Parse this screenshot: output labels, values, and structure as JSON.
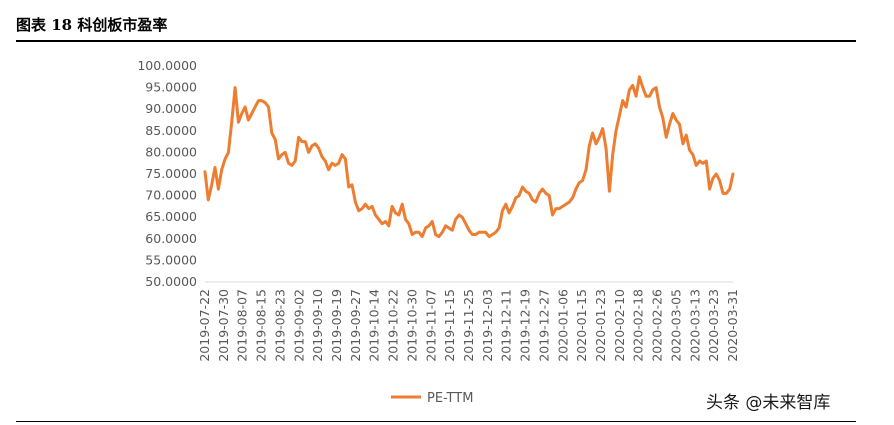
{
  "header": {
    "title": "图表 18 科创板市盈率"
  },
  "watermark": "头条 @未来智库",
  "chart_data": {
    "type": "line",
    "title": "",
    "xlabel": "",
    "ylabel": "",
    "ylim": [
      50,
      100
    ],
    "yticks": [
      "100.0000",
      "95.0000",
      "90.0000",
      "85.0000",
      "80.0000",
      "75.0000",
      "70.0000",
      "65.0000",
      "60.0000",
      "55.0000",
      "50.0000"
    ],
    "xticks": [
      "2019-07-22",
      "2019-07-30",
      "2019-08-07",
      "2019-08-15",
      "2019-08-23",
      "2019-09-02",
      "2019-09-10",
      "2019-09-19",
      "2019-09-27",
      "2019-10-14",
      "2019-10-22",
      "2019-10-30",
      "2019-11-07",
      "2019-11-15",
      "2019-11-25",
      "2019-12-03",
      "2019-12-11",
      "2019-12-19",
      "2019-12-27",
      "2020-01-06",
      "2020-01-15",
      "2020-01-23",
      "2020-02-10",
      "2020-02-18",
      "2020-02-26",
      "2020-03-05",
      "2020-03-13",
      "2020-03-23",
      "2020-03-31"
    ],
    "grid": false,
    "legend": "bottom-center",
    "series": [
      {
        "name": "PE-TTM",
        "color": "#ED7D31",
        "values": [
          75.5,
          69.0,
          72.5,
          76.5,
          71.5,
          76.0,
          78.5,
          80.0,
          87.0,
          95.0,
          87.0,
          89.0,
          90.5,
          87.5,
          89.0,
          90.5,
          92.0,
          92.0,
          91.5,
          90.5,
          84.5,
          83.0,
          78.5,
          79.5,
          80.0,
          77.5,
          77.0,
          78.0,
          83.5,
          82.5,
          82.5,
          80.0,
          81.5,
          82.0,
          81.0,
          79.0,
          78.0,
          76.0,
          77.5,
          77.0,
          77.5,
          79.5,
          78.5,
          72.0,
          72.5,
          68.5,
          66.5,
          67.0,
          68.0,
          67.0,
          67.5,
          65.5,
          64.5,
          63.5,
          64.0,
          63.0,
          67.5,
          66.0,
          65.5,
          68.0,
          64.5,
          63.5,
          61.0,
          61.5,
          61.5,
          60.5,
          62.5,
          63.0,
          64.0,
          61.0,
          60.5,
          61.5,
          63.0,
          62.5,
          62.0,
          64.5,
          65.5,
          65.0,
          63.5,
          62.0,
          61.0,
          61.0,
          61.5,
          61.5,
          61.5,
          60.5,
          61.0,
          61.5,
          62.5,
          66.5,
          68.0,
          66.0,
          67.5,
          69.5,
          70.0,
          72.0,
          71.0,
          70.5,
          69.0,
          68.5,
          70.5,
          71.5,
          70.5,
          70.0,
          65.5,
          67.0,
          67.0,
          67.5,
          68.0,
          68.5,
          69.5,
          71.5,
          73.0,
          73.5,
          76.0,
          81.5,
          84.5,
          82.0,
          83.5,
          85.5,
          81.0,
          71.0,
          79.5,
          85.0,
          88.5,
          92.0,
          90.5,
          94.5,
          95.5,
          93.0,
          97.5,
          95.0,
          93.0,
          93.0,
          94.5,
          95.0,
          90.5,
          88.0,
          83.5,
          86.5,
          89.0,
          87.5,
          86.5,
          82.0,
          84.0,
          80.5,
          79.5,
          77.0,
          78.0,
          77.5,
          78.0,
          71.5,
          74.0,
          75.0,
          73.5,
          70.5,
          70.5,
          71.5,
          75.0
        ]
      }
    ]
  }
}
